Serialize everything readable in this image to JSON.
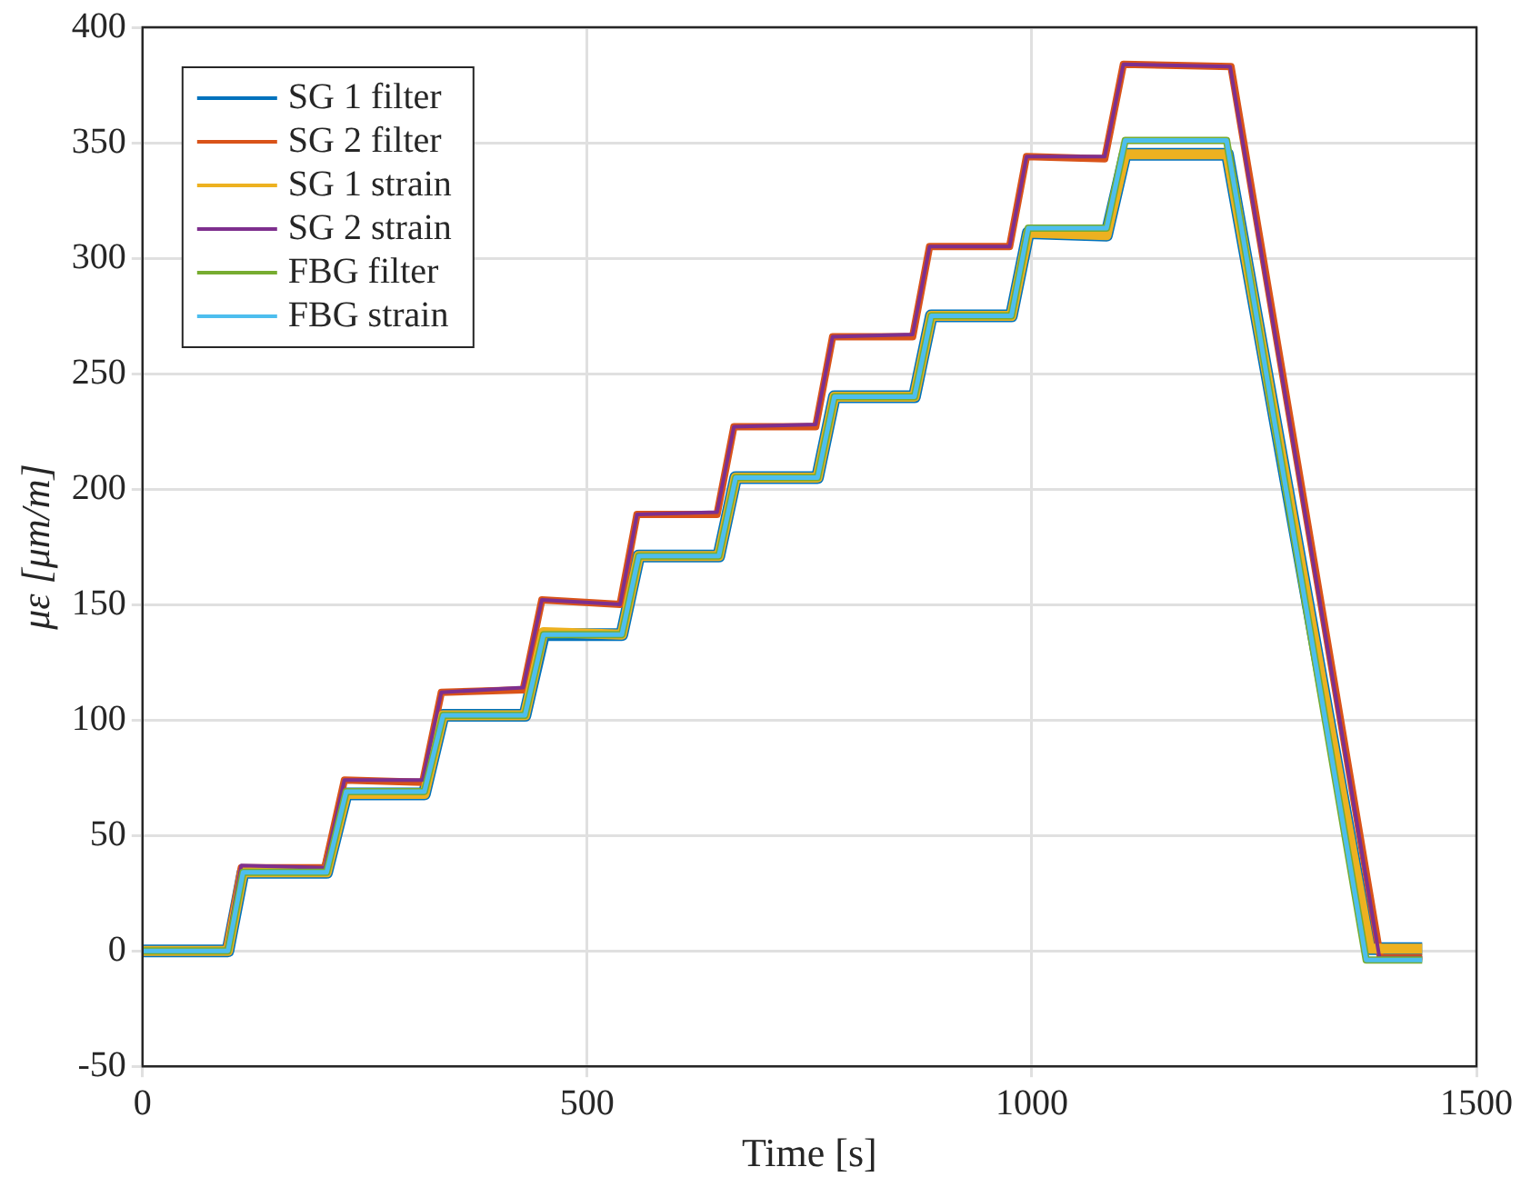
{
  "chart_data": {
    "type": "line",
    "xlabel": "Time [s]",
    "ylabel": "με [μm/m]",
    "xlim": [
      0,
      1500
    ],
    "xticks": [
      0,
      500,
      1000,
      1500
    ],
    "ylim": [
      -50,
      400
    ],
    "yticks": [
      -50,
      0,
      50,
      100,
      150,
      200,
      250,
      300,
      350,
      400
    ],
    "grid": true,
    "legend": "top left",
    "marker": "none",
    "line_style": "solid",
    "series": [
      {
        "name": "SG 1 filter",
        "color": "#0072bd",
        "x": [
          0,
          96,
          113,
          207,
          229,
          317,
          338,
          430,
          451,
          539,
          558,
          648,
          667,
          759,
          778,
          868,
          887,
          977,
          996,
          1084,
          1105,
          1220,
          1380,
          1439
        ],
        "values": [
          0,
          0,
          34,
          34,
          68,
          68,
          102,
          102,
          137,
          137,
          171,
          171,
          205,
          205,
          240,
          240,
          275,
          275,
          311,
          310,
          345,
          345,
          1,
          1
        ]
      },
      {
        "name": "SG 2 filter",
        "color": "#d95319",
        "x": [
          0,
          94,
          111,
          205,
          227,
          315,
          336,
          428,
          449,
          537,
          556,
          646,
          665,
          757,
          776,
          866,
          885,
          975,
          994,
          1082,
          1103,
          1224,
          1392,
          1439
        ],
        "values": [
          0,
          0,
          36,
          36,
          74,
          73,
          112,
          113,
          152,
          150,
          189,
          189,
          227,
          227,
          266,
          266,
          305,
          305,
          344,
          343,
          384,
          383,
          -3,
          -3
        ]
      },
      {
        "name": "SG 1 strain",
        "color": "#edb120",
        "x": [
          0,
          96,
          113,
          207,
          229,
          317,
          338,
          430,
          451,
          539,
          558,
          648,
          667,
          759,
          778,
          868,
          887,
          977,
          996,
          1084,
          1105,
          1220,
          1380,
          1439
        ],
        "values": [
          0,
          0,
          34,
          34,
          68,
          68,
          102,
          102,
          138,
          137,
          171,
          171,
          205,
          205,
          240,
          240,
          275,
          275,
          311,
          310,
          345,
          345,
          1,
          1
        ]
      },
      {
        "name": "SG 2 strain",
        "color": "#7e2f8e",
        "x": [
          0,
          94,
          111,
          205,
          227,
          315,
          336,
          428,
          449,
          537,
          556,
          646,
          665,
          757,
          776,
          866,
          885,
          975,
          994,
          1082,
          1103,
          1223,
          1391,
          1439
        ],
        "values": [
          0,
          0,
          37,
          36,
          74,
          74,
          112,
          114,
          152,
          150,
          189,
          190,
          227,
          228,
          266,
          267,
          305,
          305,
          344,
          344,
          384,
          383,
          -3,
          -3
        ]
      },
      {
        "name": "FBG filter",
        "color": "#77ac30",
        "x": [
          0,
          96,
          113,
          207,
          229,
          317,
          338,
          430,
          451,
          539,
          558,
          648,
          667,
          759,
          778,
          868,
          887,
          977,
          996,
          1084,
          1105,
          1219,
          1376,
          1439
        ],
        "values": [
          0,
          0,
          34,
          34,
          69,
          69,
          102,
          102,
          137,
          137,
          171,
          171,
          205,
          205,
          240,
          240,
          275,
          275,
          313,
          313,
          351,
          351,
          -4,
          -4
        ]
      },
      {
        "name": "FBG strain",
        "color": "#4dbeee",
        "x": [
          0,
          96,
          113,
          207,
          229,
          317,
          338,
          430,
          451,
          539,
          558,
          648,
          667,
          759,
          778,
          868,
          887,
          977,
          996,
          1084,
          1105,
          1219,
          1376,
          1439
        ],
        "values": [
          0,
          0,
          34,
          34,
          69,
          69,
          102,
          102,
          137,
          137,
          171,
          171,
          205,
          205,
          240,
          240,
          275,
          275,
          313,
          313,
          351,
          351,
          -4,
          -4
        ]
      }
    ]
  }
}
